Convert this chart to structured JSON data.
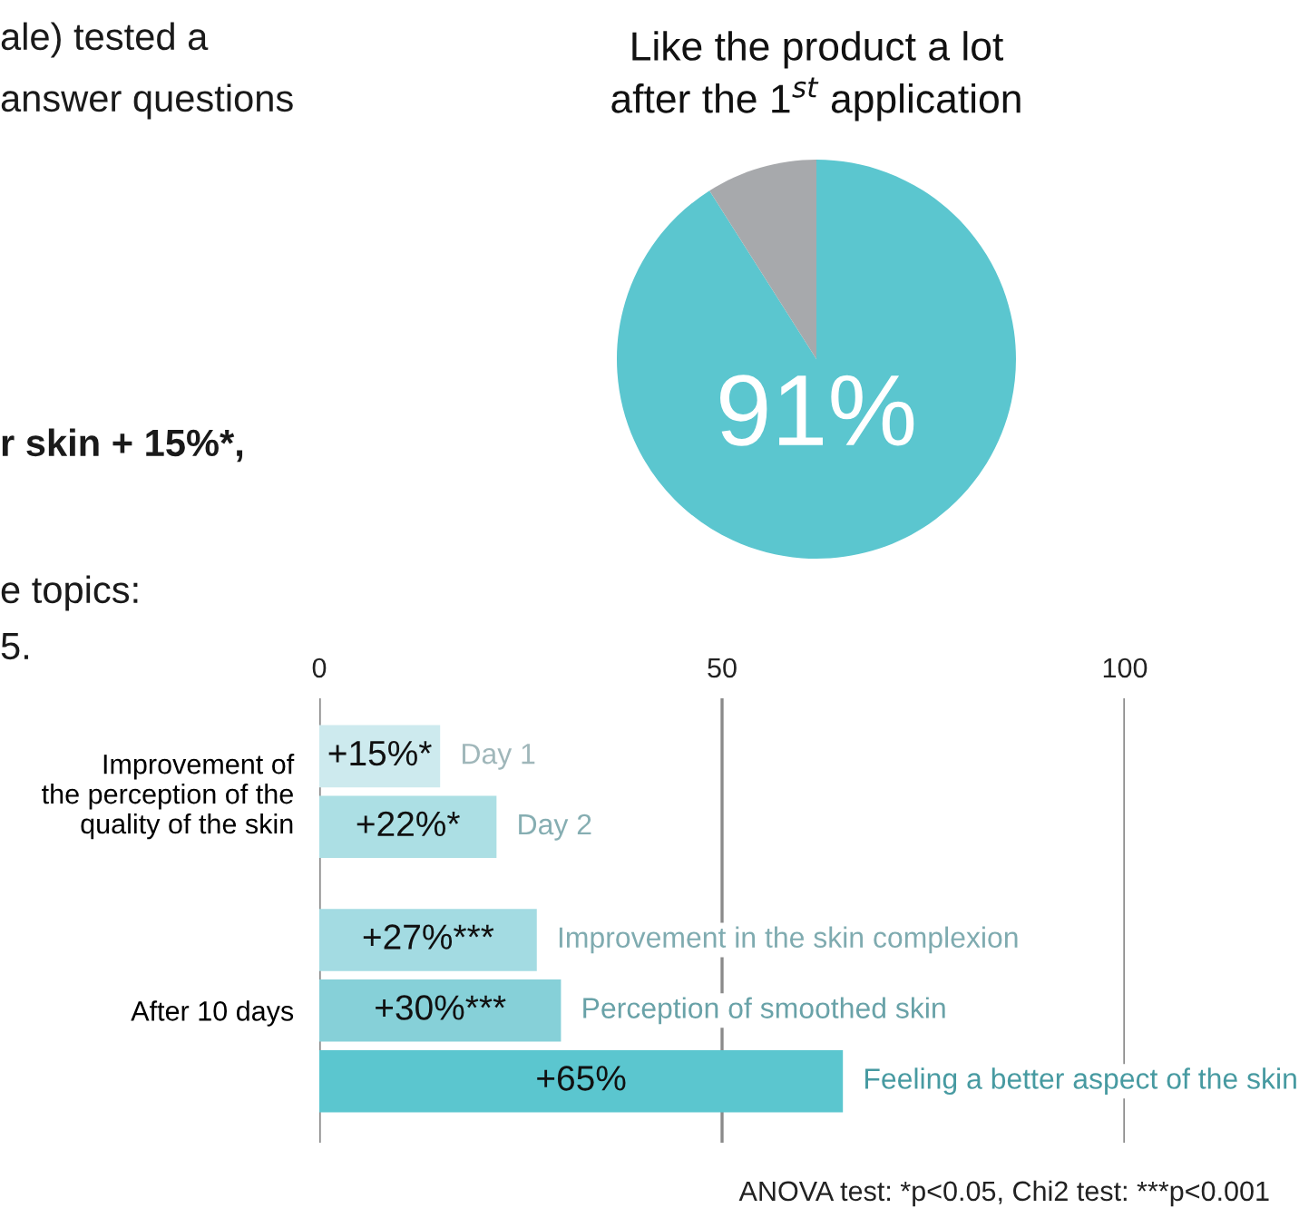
{
  "chart_data": [
    {
      "type": "other",
      "annotations": [
        "ale) tested a",
        "answer questions",
        "r skin + 15%*,",
        "e topics:",
        "5."
      ]
    },
    {
      "type": "pie",
      "title": "Like the product a lot\nafter the 1$^{st}$ application",
      "categories": [
        null,
        null
      ],
      "values": [
        91,
        9
      ],
      "colors": [
        "#5bc6cf",
        "#a7a9ac"
      ],
      "value_labels": [
        "91%",
        null
      ]
    },
    {
      "type": "bar",
      "orientation": "horizontal",
      "categories": [
        "Improvement of\nthe perception of the\nquality of the skin",
        "After 10 days"
      ],
      "xlim": [
        0,
        100
      ],
      "xticks": [
        0,
        50,
        100
      ],
      "grid": "x",
      "series": [
        {
          "name": "Day 1",
          "color": "#cdeaee",
          "values": [
            15,
            null
          ],
          "value_labels": [
            "+15%*",
            null
          ]
        },
        {
          "name": "Day 2",
          "color": "#acdfe4",
          "values": [
            22,
            null
          ],
          "value_labels": [
            "+22%*",
            null
          ]
        },
        {
          "name": "Improvement in the skin complexion",
          "color": "#a3dbe2",
          "values": [
            null,
            27
          ],
          "value_labels": [
            null,
            "+27%***"
          ]
        },
        {
          "name": "Perception of smoothed skin",
          "color": "#86d0d8",
          "values": [
            null,
            30
          ],
          "value_labels": [
            null,
            "+30%***"
          ]
        },
        {
          "name": "Feeling a better aspect of the skin",
          "color": "#5bc6cf",
          "values": [
            null,
            65
          ],
          "value_labels": [
            null,
            "+65%"
          ]
        }
      ],
      "annotations": [
        "ANOVA test: *p<0.05, Chi2 test: ***p<0.001"
      ]
    }
  ]
}
